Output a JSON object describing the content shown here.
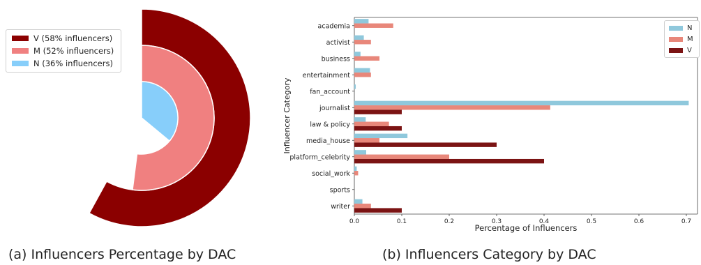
{
  "chart_data": [
    {
      "type": "pie",
      "subtype": "radial-bar",
      "caption": "(a) Influencers Percentage by DAC",
      "rings": [
        {
          "name": "V (58% influencers)",
          "value": 58,
          "color": "#8b0000"
        },
        {
          "name": "M (52% influencers)",
          "value": 52,
          "color": "#f08080"
        },
        {
          "name": "N (36% influencers)",
          "value": 36,
          "color": "#87cefa"
        }
      ],
      "legend_position": "top-left"
    },
    {
      "type": "bar",
      "orientation": "horizontal",
      "caption": "(b) Influencers Category by DAC",
      "xlabel": "Percentage of Influencers",
      "ylabel": "Influencer Category",
      "xlim": [
        0,
        0.72
      ],
      "xticks": [
        "0.0",
        "0.1",
        "0.2",
        "0.3",
        "0.4",
        "0.5",
        "0.6",
        "0.7"
      ],
      "categories": [
        "academia",
        "activist",
        "business",
        "entertainment",
        "fan_account",
        "journalist",
        "law & policy",
        "media_house",
        "platform_celebrity",
        "social_work",
        "sports",
        "writer"
      ],
      "series": [
        {
          "name": "N",
          "color": "#8fc8dc",
          "values": [
            0.03,
            0.02,
            0.013,
            0.033,
            0.003,
            0.705,
            0.024,
            0.112,
            0.025,
            0.005,
            0.0,
            0.017
          ]
        },
        {
          "name": "M",
          "color": "#e8877a",
          "values": [
            0.082,
            0.035,
            0.053,
            0.035,
            0.0,
            0.413,
            0.073,
            0.053,
            0.2,
            0.008,
            0.0,
            0.035
          ]
        },
        {
          "name": "V",
          "color": "#7b1313",
          "values": [
            0.0,
            0.0,
            0.0,
            0.0,
            0.0,
            0.1,
            0.1,
            0.3,
            0.4,
            0.0,
            0.0,
            0.1
          ]
        }
      ],
      "legend_position": "top-right"
    }
  ]
}
